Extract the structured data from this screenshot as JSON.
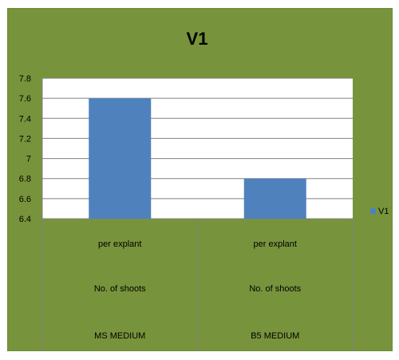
{
  "chart_data": {
    "type": "bar",
    "title": "V1",
    "categories": [
      [
        "per explant",
        "No. of shoots",
        "MS MEDIUM"
      ],
      [
        "per explant",
        "No. of shoots",
        "B5 MEDIUM"
      ]
    ],
    "series": [
      {
        "name": "V1",
        "values": [
          7.6,
          6.8
        ],
        "color": "#4f81bd"
      }
    ],
    "yticks": [
      "7.8",
      "7.6",
      "7.4",
      "7.2",
      "7",
      "6.8",
      "6.6",
      "6.4"
    ],
    "ylim": [
      6.4,
      7.8
    ],
    "grid": true,
    "legend_position": "right",
    "colors": {
      "background": "#77933c",
      "plot": "#ffffff",
      "bar": "#4f81bd"
    }
  }
}
